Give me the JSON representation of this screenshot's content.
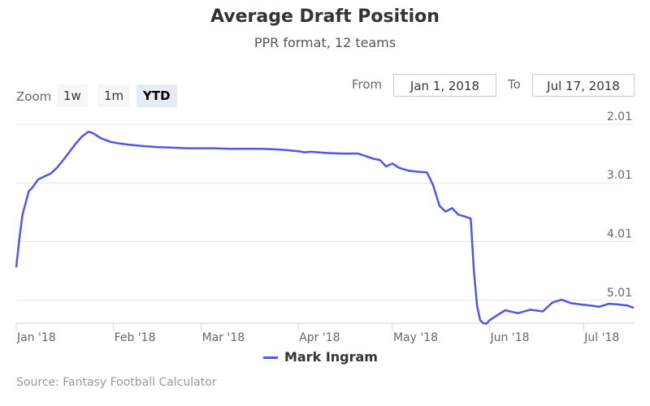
{
  "title": "Average Draft Position",
  "subtitle": "PPR format, 12 teams",
  "zoom": {
    "label": "Zoom",
    "buttons": [
      "1w",
      "1m",
      "YTD"
    ],
    "selected": "YTD"
  },
  "range": {
    "from_label": "From",
    "from_value": "Jan 1, 2018",
    "to_label": "To",
    "to_value": "Jul 17, 2018"
  },
  "credits": "Source: Fantasy Football Calculator",
  "colors": {
    "series": "#4e57e6",
    "grid": "#e6e6e6",
    "axis": "#ccd6eb"
  },
  "chart_data": {
    "type": "line",
    "x_type": "date",
    "x_range": [
      "2018-01-01",
      "2018-07-17"
    ],
    "ylim": [
      1.9,
      5.4
    ],
    "y_reversed": true,
    "y_ticks": [
      2.01,
      3.01,
      4.01,
      5.01
    ],
    "y_tick_labels": [
      "2.01",
      "3.01",
      "4.01",
      "5.01"
    ],
    "x_ticks": [
      "2018-01-01",
      "2018-02-01",
      "2018-03-01",
      "2018-04-01",
      "2018-05-01",
      "2018-06-01",
      "2018-07-01"
    ],
    "x_tick_labels": [
      "Jan '18",
      "Feb '18",
      "Mar '18",
      "Apr '18",
      "May '18",
      "Jun '18",
      "Jul '18"
    ],
    "grid": true,
    "legend_position": "bottom-center",
    "series": [
      {
        "name": "Mark Ingram",
        "x": [
          "2018-01-01",
          "2018-01-02",
          "2018-01-03",
          "2018-01-05",
          "2018-01-06",
          "2018-01-08",
          "2018-01-10",
          "2018-01-12",
          "2018-01-14",
          "2018-01-16",
          "2018-01-18",
          "2018-01-20",
          "2018-01-22",
          "2018-01-24",
          "2018-01-25",
          "2018-01-26",
          "2018-01-28",
          "2018-01-31",
          "2018-02-03",
          "2018-02-06",
          "2018-02-10",
          "2018-02-15",
          "2018-02-20",
          "2018-02-25",
          "2018-03-01",
          "2018-03-05",
          "2018-03-10",
          "2018-03-15",
          "2018-03-20",
          "2018-03-25",
          "2018-03-28",
          "2018-04-01",
          "2018-04-03",
          "2018-04-05",
          "2018-04-10",
          "2018-04-15",
          "2018-04-20",
          "2018-04-25",
          "2018-04-27",
          "2018-04-29",
          "2018-05-01",
          "2018-05-03",
          "2018-05-06",
          "2018-05-09",
          "2018-05-12",
          "2018-05-14",
          "2018-05-16",
          "2018-05-18",
          "2018-05-20",
          "2018-05-22",
          "2018-05-24",
          "2018-05-26",
          "2018-05-27",
          "2018-05-28",
          "2018-05-29",
          "2018-05-30",
          "2018-05-31",
          "2018-06-01",
          "2018-06-03",
          "2018-06-06",
          "2018-06-10",
          "2018-06-14",
          "2018-06-18",
          "2018-06-21",
          "2018-06-24",
          "2018-06-27",
          "2018-06-30",
          "2018-07-03",
          "2018-07-06",
          "2018-07-09",
          "2018-07-12",
          "2018-07-15",
          "2018-07-17"
        ],
        "y": [
          4.45,
          3.95,
          3.55,
          3.15,
          3.1,
          2.95,
          2.9,
          2.85,
          2.75,
          2.62,
          2.48,
          2.34,
          2.22,
          2.14,
          2.15,
          2.18,
          2.25,
          2.31,
          2.34,
          2.36,
          2.38,
          2.4,
          2.41,
          2.42,
          2.42,
          2.42,
          2.43,
          2.43,
          2.43,
          2.44,
          2.45,
          2.47,
          2.49,
          2.48,
          2.5,
          2.51,
          2.51,
          2.6,
          2.62,
          2.73,
          2.68,
          2.75,
          2.8,
          2.82,
          2.83,
          3.05,
          3.4,
          3.5,
          3.44,
          3.55,
          3.58,
          3.62,
          4.5,
          5.1,
          5.35,
          5.4,
          5.41,
          5.35,
          5.28,
          5.18,
          5.23,
          5.17,
          5.2,
          5.05,
          5.0,
          5.06,
          5.08,
          5.1,
          5.12,
          5.07,
          5.08,
          5.1,
          5.14
        ]
      }
    ]
  }
}
